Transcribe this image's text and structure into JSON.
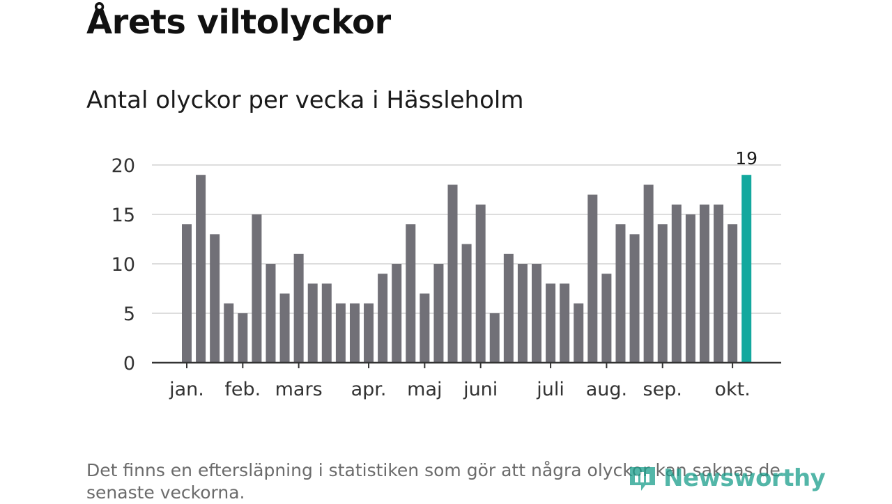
{
  "title": "Årets viltolyckor",
  "subtitle": "Antal olyckor per vecka i Hässleholm",
  "footnote": "Det finns en eftersläpning i statistiken som gör att några olyckor kan saknas de senaste veckorna.",
  "logo": {
    "text": "Newsworthy",
    "icon": "newsworthy-logo-icon"
  },
  "colors": {
    "bar": "#717077",
    "highlight": "#13a89e",
    "grid": "#dddddd",
    "axis": "#333333"
  },
  "chart_data": {
    "type": "bar",
    "title": "Antal olyckor per vecka i Hässleholm",
    "xlabel": "",
    "ylabel": "",
    "ylim": [
      0,
      20
    ],
    "yticks": [
      0,
      5,
      10,
      15,
      20
    ],
    "values": [
      14,
      19,
      13,
      6,
      5,
      15,
      10,
      7,
      11,
      8,
      8,
      6,
      6,
      6,
      9,
      10,
      14,
      7,
      10,
      18,
      12,
      16,
      5,
      11,
      10,
      10,
      8,
      8,
      6,
      17,
      9,
      14,
      13,
      18,
      14,
      16,
      15,
      16,
      16,
      14,
      19
    ],
    "highlight_index": 40,
    "highlight_label": "19",
    "month_ticks": [
      {
        "label": "jan.",
        "bar_index": 0
      },
      {
        "label": "feb.",
        "bar_index": 4
      },
      {
        "label": "mars",
        "bar_index": 8
      },
      {
        "label": "apr.",
        "bar_index": 13
      },
      {
        "label": "maj",
        "bar_index": 17
      },
      {
        "label": "juni",
        "bar_index": 21
      },
      {
        "label": "juli",
        "bar_index": 26
      },
      {
        "label": "aug.",
        "bar_index": 30
      },
      {
        "label": "sep.",
        "bar_index": 34
      },
      {
        "label": "okt.",
        "bar_index": 39
      }
    ],
    "grid": true
  }
}
